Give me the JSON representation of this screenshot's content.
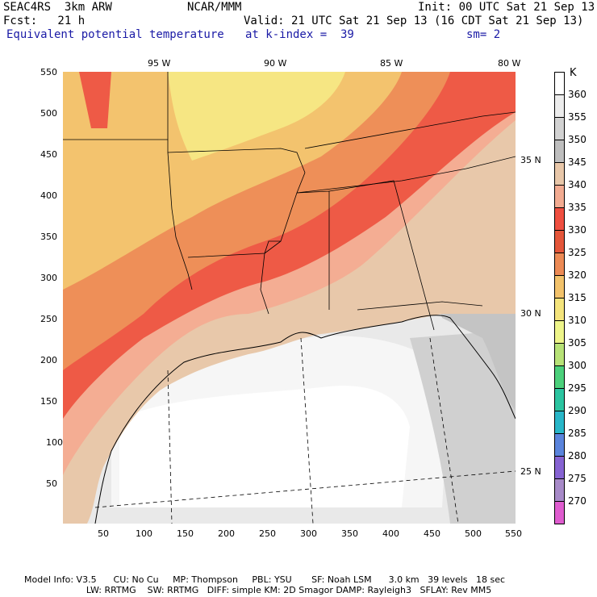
{
  "header": {
    "model": "SEAC4RS  3km ARW",
    "org": "NCAR/MMM",
    "init": "Init: 00 UTC Sat 21 Sep 13",
    "fcst": "Fcst:   21 h",
    "valid": "Valid: 21 UTC Sat 21 Sep 13 (16 CDT Sat 21 Sep 13)",
    "field": "Equivalent potential temperature",
    "level": "at k-index =  39",
    "smooth": "sm= 2"
  },
  "map": {
    "x_ticks": [
      "50",
      "100",
      "150",
      "200",
      "250",
      "300",
      "350",
      "400",
      "450",
      "500",
      "550"
    ],
    "y_ticks": [
      "550",
      "500",
      "450",
      "400",
      "350",
      "300",
      "250",
      "200",
      "150",
      "100",
      "50"
    ],
    "lon_labels": [
      "95 W",
      "90 W",
      "85 W",
      "80 W"
    ],
    "lat_labels": [
      "35 N",
      "30 N",
      "25 N"
    ]
  },
  "legend": {
    "unit": "K",
    "levels": [
      "360",
      "355",
      "350",
      "345",
      "340",
      "335",
      "330",
      "325",
      "320",
      "315",
      "310",
      "305",
      "300",
      "295",
      "290",
      "285",
      "280",
      "275",
      "270"
    ],
    "colors": [
      "#ffffff",
      "#ececec",
      "#d2d2d2",
      "#bebebe",
      "#e8c7a9",
      "#f2ab91",
      "#ef4f40",
      "#e4563a",
      "#ec8a55",
      "#f2c26b",
      "#f4e47c",
      "#eef58a",
      "#b7e277",
      "#4bd07b",
      "#2bc4a0",
      "#28b6c8",
      "#5a84dc",
      "#8663d2",
      "#a78ac8",
      "#df5ccf"
    ]
  },
  "footer": {
    "line1": "Model Info: V3.5      CU: No Cu     MP: Thompson     PBL: YSU       SF: Noah LSM      3.0 km   39 levels   18 sec",
    "line2": "                      LW: RRTMG    SW: RRTMG   DIFF: simple KM: 2D Smagor DAMP: Rayleigh3   SFLAY: Rev MM5"
  }
}
